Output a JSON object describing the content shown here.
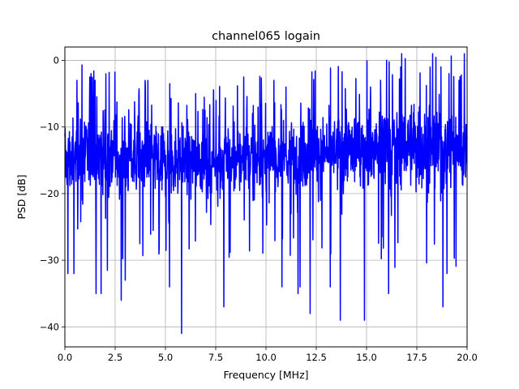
{
  "chart_data": {
    "type": "line",
    "title": "channel065 logain",
    "xlabel": "Frequency [MHz]",
    "ylabel": "PSD [dB]",
    "xlim": [
      0,
      20
    ],
    "ylim": [
      -43,
      2
    ],
    "grid": true,
    "line_color": "#0000ff",
    "x_ticks": [
      0,
      2.5,
      5,
      7.5,
      10,
      12.5,
      15,
      17.5,
      20
    ],
    "x_tick_labels": [
      "0.0",
      "2.5",
      "5.0",
      "7.5",
      "10.0",
      "12.5",
      "15.0",
      "17.5",
      "20.0"
    ],
    "y_ticks": [
      0,
      -10,
      -20,
      -30,
      -40
    ],
    "y_tick_labels": [
      "0",
      "−10",
      "−20",
      "−30",
      "−40"
    ],
    "series": [
      {
        "x_range": [
          0,
          20
        ],
        "num_points": 1600,
        "trend": {
          "x": [
            0.0,
            1.25,
            2.5,
            5.0,
            7.5,
            10.0,
            12.5,
            15.0,
            17.5,
            20.0
          ],
          "center": [
            -15,
            -14,
            -14,
            -15,
            -15,
            -15,
            -14,
            -13,
            -13,
            -13
          ],
          "typical_spread": [
            6,
            7,
            7,
            6,
            6,
            6,
            6,
            7,
            7,
            7
          ]
        },
        "peaks": [
          {
            "x": 0.6,
            "y": -3
          },
          {
            "x": 1.3,
            "y": -2
          },
          {
            "x": 1.5,
            "y": -3
          },
          {
            "x": 6.5,
            "y": -5
          },
          {
            "x": 10.4,
            "y": -3
          },
          {
            "x": 11.0,
            "y": -4
          },
          {
            "x": 15.2,
            "y": -4
          },
          {
            "x": 15.7,
            "y": -3
          },
          {
            "x": 16.0,
            "y": 0
          },
          {
            "x": 16.7,
            "y": -1
          },
          {
            "x": 18.7,
            "y": -1
          },
          {
            "x": 19.1,
            "y": -2
          },
          {
            "x": 19.6,
            "y": -3
          }
        ],
        "dips": [
          {
            "x": 0.15,
            "y": -32
          },
          {
            "x": 0.45,
            "y": -32
          },
          {
            "x": 1.55,
            "y": -35
          },
          {
            "x": 1.8,
            "y": -35
          },
          {
            "x": 2.8,
            "y": -36
          },
          {
            "x": 3.0,
            "y": -33
          },
          {
            "x": 5.2,
            "y": -34
          },
          {
            "x": 5.8,
            "y": -41
          },
          {
            "x": 7.9,
            "y": -37
          },
          {
            "x": 10.8,
            "y": -34
          },
          {
            "x": 11.6,
            "y": -35
          },
          {
            "x": 11.7,
            "y": -34
          },
          {
            "x": 12.2,
            "y": -38
          },
          {
            "x": 13.2,
            "y": -34
          },
          {
            "x": 13.7,
            "y": -39
          },
          {
            "x": 14.9,
            "y": -39
          },
          {
            "x": 16.1,
            "y": -35
          },
          {
            "x": 18.8,
            "y": -37
          },
          {
            "x": 19.0,
            "y": -32
          }
        ]
      }
    ]
  }
}
